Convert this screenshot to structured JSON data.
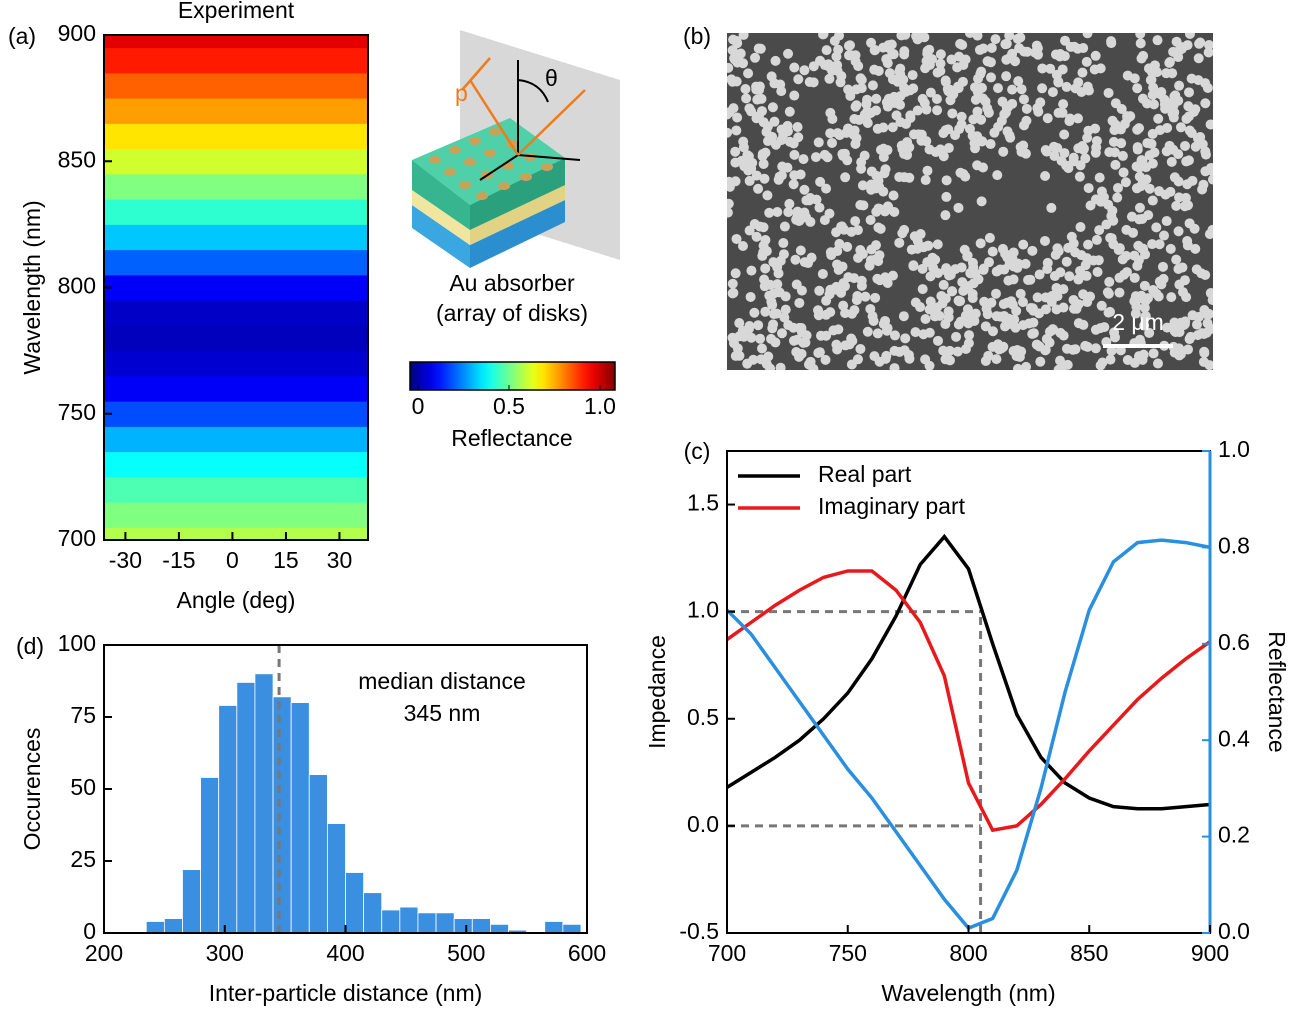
{
  "chart_data": [
    {
      "type": "heatmap",
      "panel_label": "(a)",
      "title": "Experiment",
      "x_label": "Angle (deg)",
      "y_label": "Wavelength (nm)",
      "xlim": [
        -36,
        38
      ],
      "xticks": [
        -30,
        -15,
        0,
        15,
        30
      ],
      "ylim": [
        700,
        900
      ],
      "yticks": [
        700,
        750,
        800,
        850,
        900
      ],
      "colormap": "jet",
      "y": [
        700,
        710,
        720,
        730,
        740,
        750,
        760,
        770,
        780,
        790,
        800,
        810,
        820,
        830,
        840,
        850,
        860,
        870,
        880,
        890,
        900
      ],
      "values": [
        0.55,
        0.5,
        0.45,
        0.38,
        0.3,
        0.2,
        0.12,
        0.08,
        0.06,
        0.07,
        0.12,
        0.22,
        0.32,
        0.42,
        0.5,
        0.58,
        0.65,
        0.72,
        0.78,
        0.85,
        0.9
      ],
      "colorbar": {
        "label": "Reflectance",
        "lim": [
          0,
          1
        ],
        "ticks": [
          0,
          0.5,
          {
            "value": 1,
            "label": "1.0"
          }
        ]
      },
      "annotations": [
        "p",
        "θ",
        "Au absorber",
        "(array of disks)"
      ]
    },
    {
      "type": "image",
      "panel_label": "(b)",
      "scale_bar": "2 μm"
    },
    {
      "type": "line",
      "panel_label": "(c)",
      "x_label": "Wavelength (nm)",
      "y_label": "Impedance",
      "y2_label": "Reflectance",
      "xlim": [
        700,
        900
      ],
      "xticks": [
        700,
        750,
        800,
        850,
        900
      ],
      "ylim": [
        -0.5,
        1.75
      ],
      "yticks": [
        -0.5,
        {
          "value": 0,
          "label": "0.0"
        },
        0.5,
        {
          "value": 1,
          "label": "1.0"
        },
        1.5
      ],
      "y2lim": [
        0,
        1
      ],
      "y2ticks": [
        {
          "value": 0,
          "label": "0.0"
        },
        0.2,
        0.4,
        0.6,
        0.8,
        {
          "value": 1,
          "label": "1.0"
        }
      ],
      "vlines": [
        805
      ],
      "hlines": [
        1,
        0
      ],
      "x": [
        700,
        710,
        720,
        730,
        740,
        750,
        760,
        770,
        780,
        790,
        800,
        810,
        820,
        830,
        840,
        850,
        860,
        870,
        880,
        890,
        900
      ],
      "series": [
        {
          "name": "Real part",
          "color": "#000000",
          "values": [
            0.18,
            0.25,
            0.32,
            0.4,
            0.5,
            0.62,
            0.78,
            0.98,
            1.22,
            1.35,
            1.2,
            0.85,
            0.52,
            0.32,
            0.2,
            0.13,
            0.09,
            0.08,
            0.08,
            0.09,
            0.1
          ]
        },
        {
          "name": "Imaginary part",
          "color": "#e8191b",
          "values": [
            0.87,
            0.95,
            1.03,
            1.1,
            1.16,
            1.19,
            1.19,
            1.1,
            0.95,
            0.7,
            0.2,
            -0.02,
            0.0,
            0.1,
            0.22,
            0.35,
            0.47,
            0.59,
            0.69,
            0.78,
            0.86
          ]
        },
        {
          "color": "#2a8fde",
          "axis": "y2",
          "values": [
            0.67,
            0.62,
            0.55,
            0.48,
            0.41,
            0.34,
            0.28,
            0.21,
            0.14,
            0.07,
            0.01,
            0.03,
            0.13,
            0.3,
            0.5,
            0.67,
            0.77,
            0.81,
            0.815,
            0.81,
            0.8
          ]
        }
      ]
    },
    {
      "type": "histogram",
      "panel_label": "(d)",
      "x_label": "Inter-particle distance (nm)",
      "y_label": "Occurences",
      "xlim": [
        200,
        600
      ],
      "xticks": [
        200,
        300,
        400,
        500,
        600
      ],
      "ylim": [
        0,
        100
      ],
      "yticks": [
        0,
        25,
        50,
        75,
        100
      ],
      "color": "#3a8fe0",
      "vlines": [
        345
      ],
      "annotations": [
        "median distance",
        "345 nm"
      ],
      "bins": [
        235,
        250,
        265,
        280,
        295,
        310,
        325,
        340,
        355,
        370,
        385,
        400,
        415,
        430,
        445,
        460,
        475,
        490,
        505,
        520,
        535,
        550,
        565,
        580,
        595
      ],
      "counts": [
        4,
        5,
        22,
        54,
        79,
        87,
        90,
        82,
        80,
        55,
        38,
        21,
        14,
        8,
        9,
        7,
        7,
        5,
        5,
        3,
        1,
        0,
        4,
        3
      ]
    }
  ]
}
